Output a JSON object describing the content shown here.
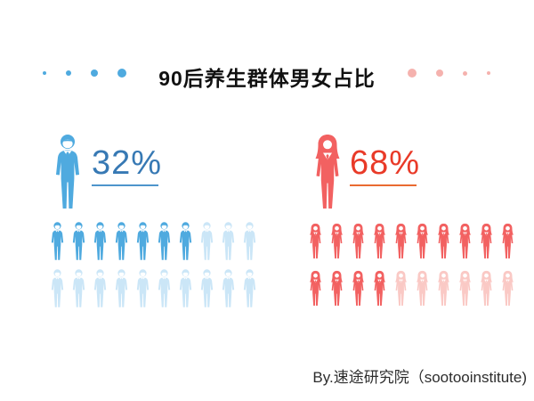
{
  "title": "90后养生群体男女占比",
  "decor": {
    "left_dots": {
      "color": "#4FAADF",
      "sizes": [
        4,
        6,
        8,
        10
      ]
    },
    "right_dots": {
      "color": "#F5B2AE",
      "sizes": [
        10,
        8,
        5,
        4
      ]
    }
  },
  "chart_data": {
    "type": "bar",
    "variant": "pictograph",
    "title": "90后养生群体男女占比",
    "categories": [
      "男 (male)",
      "女 (female)"
    ],
    "values": [
      32,
      68
    ],
    "unit": "%",
    "legend_position": "none",
    "grid": false,
    "series": [
      {
        "name": "male",
        "label": "32%",
        "value": 32,
        "icons_total": 20,
        "icons_filled": 7,
        "icons_per_row": 10,
        "color": "#4FAADF",
        "faded_color": "#CBE6F7",
        "label_color": "#3779B4",
        "underline_color": "#4E95CC"
      },
      {
        "name": "female",
        "label": "68%",
        "value": 68,
        "icons_total": 20,
        "icons_filled": 14,
        "icons_per_row": 10,
        "color": "#F26161",
        "faded_color": "#FAC9C5",
        "label_color": "#E93A28",
        "underline_color": "#E96B31"
      }
    ]
  },
  "footer": {
    "credit": "By.速途研究院（sootooinstitute)"
  }
}
